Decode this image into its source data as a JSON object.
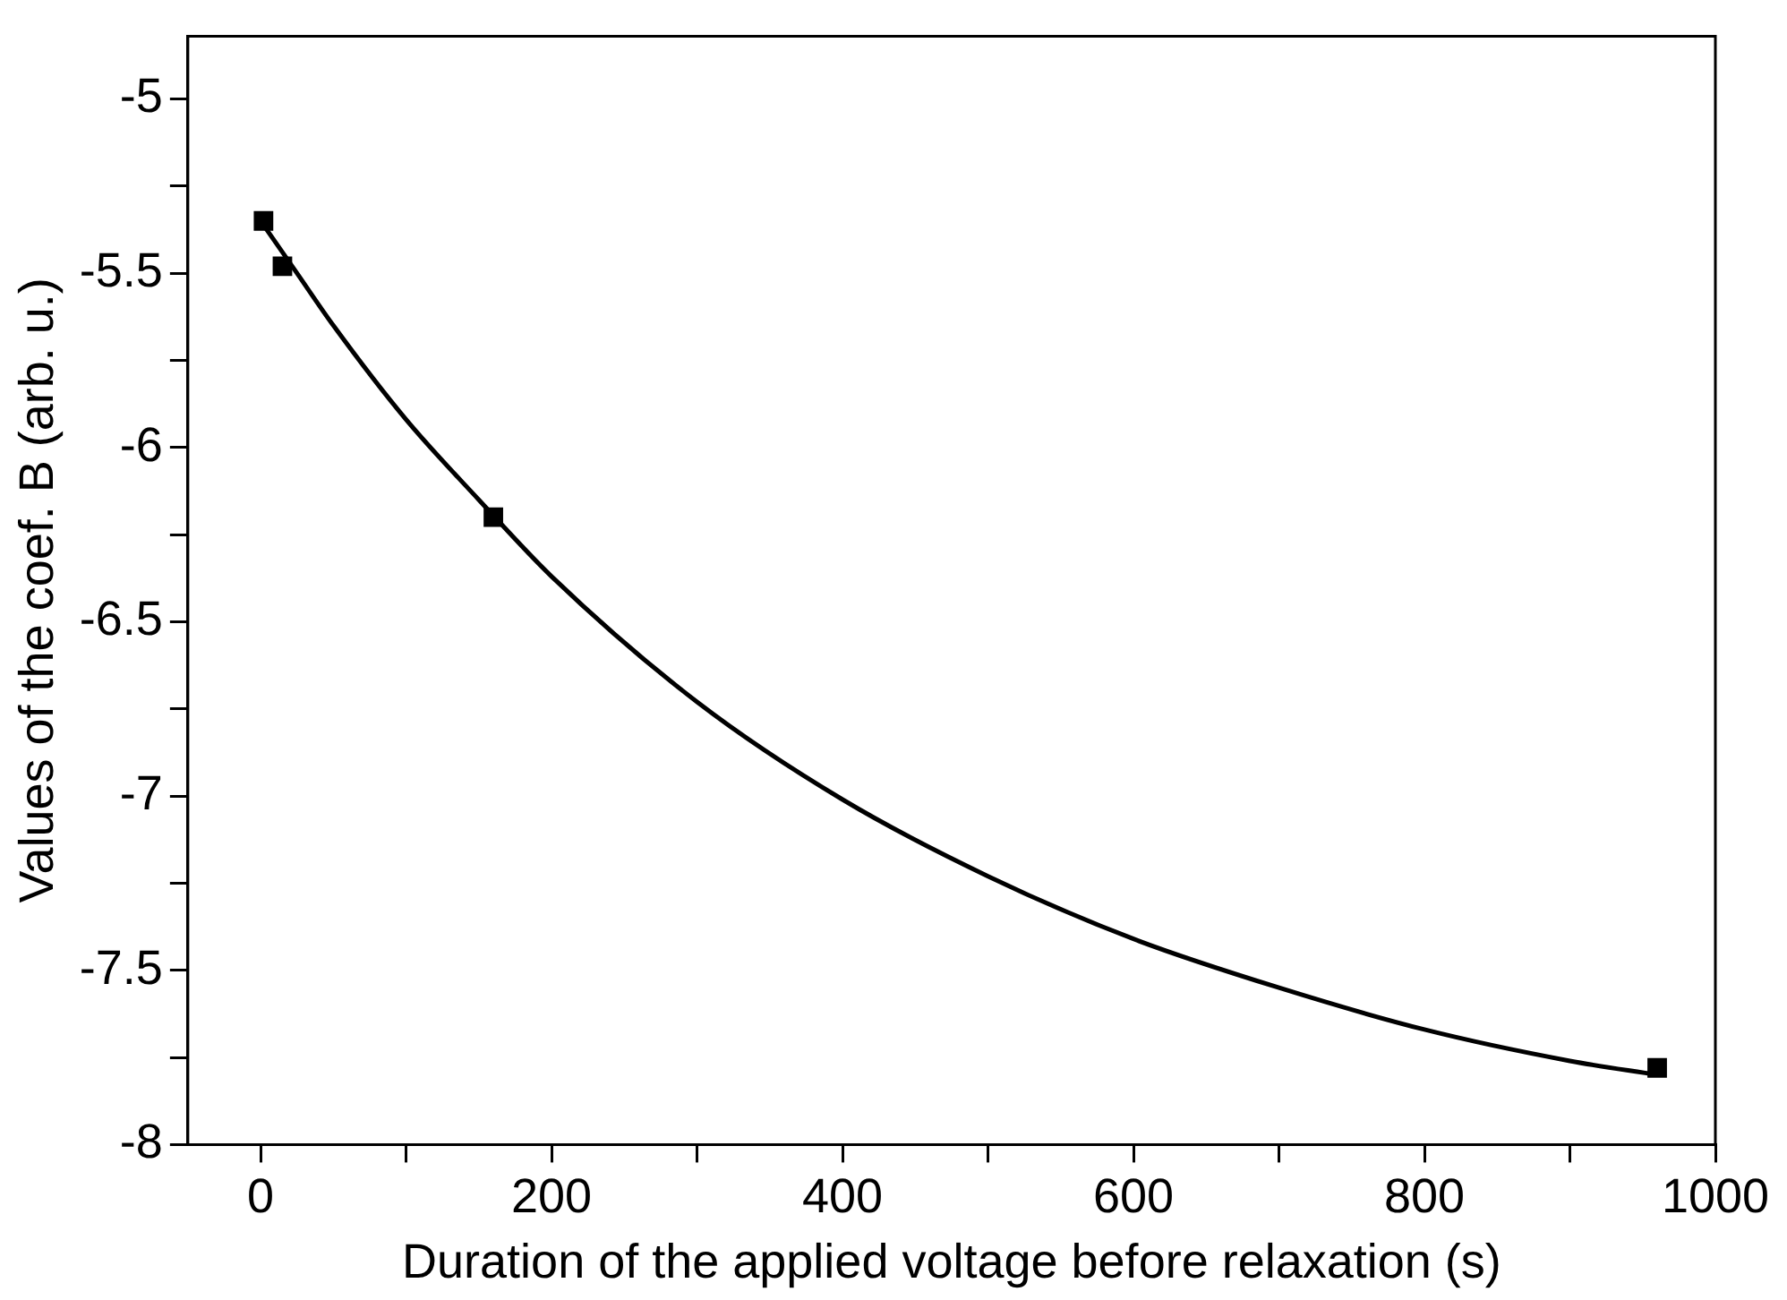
{
  "chart_data": {
    "type": "scatter",
    "xlabel": "Duration of the applied voltage before relaxation (s)",
    "ylabel": "Values of the coef. B (arb. u.)",
    "xlim": [
      -50,
      1000
    ],
    "xticks": [
      0,
      {
        "value": 100,
        "label": null
      },
      200,
      {
        "value": 300,
        "label": null
      },
      400,
      {
        "value": 500,
        "label": null
      },
      600,
      {
        "value": 700,
        "label": null
      },
      800,
      {
        "value": 900,
        "label": null
      },
      1000
    ],
    "ylim": [
      -8,
      -4.82
    ],
    "yticks": [
      -8,
      {
        "value": -7.75,
        "label": null
      },
      -7.5,
      {
        "value": -7.25,
        "label": null
      },
      -7,
      {
        "value": -6.75,
        "label": null
      },
      -6.5,
      {
        "value": -6.25,
        "label": null
      },
      -6,
      {
        "value": -5.75,
        "label": null
      },
      -5.5,
      {
        "value": -5.25,
        "label": null
      },
      -5
    ],
    "grid": false,
    "legend": false,
    "series": [
      {
        "type": "line",
        "color": "#000000",
        "marker": "none",
        "line_style": "solid",
        "x": [
          0,
          25,
          50,
          100,
          150,
          200,
          300,
          400,
          500,
          600,
          700,
          800,
          900,
          960
        ],
        "values": [
          -5.35,
          -5.5,
          -5.65,
          -5.92,
          -6.15,
          -6.37,
          -6.73,
          -7.01,
          -7.23,
          -7.41,
          -7.55,
          -7.67,
          -7.76,
          -7.8
        ]
      },
      {
        "color": "#000000",
        "marker": "square",
        "x": [
          2,
          15,
          160,
          960
        ],
        "values": [
          -5.35,
          -5.48,
          -6.2,
          -7.78
        ]
      }
    ]
  }
}
